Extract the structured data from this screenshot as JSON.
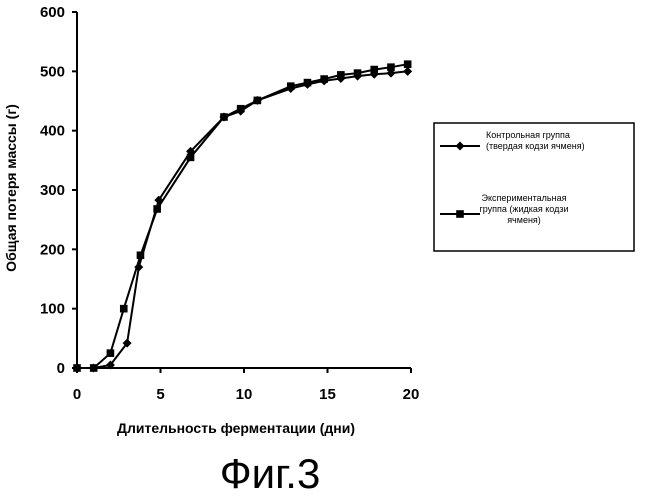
{
  "chart_data": {
    "type": "line",
    "title": "",
    "xlabel": "Длительность ферментации (дни)",
    "ylabel": "Общая потеря массы (г)",
    "xlim": [
      0,
      20
    ],
    "ylim": [
      0,
      600
    ],
    "xticks": [
      0,
      5,
      10,
      15,
      20
    ],
    "yticks": [
      0,
      100,
      200,
      300,
      400,
      500,
      600
    ],
    "grid": false,
    "legend_position": "right",
    "series": [
      {
        "name_lines": [
          "Контрольная группа",
          "(твердая кодзи ячменя)"
        ],
        "marker": "diamond",
        "color": "#000000",
        "x": [
          0,
          1,
          2,
          3,
          3.7,
          4.9,
          6.8,
          8.8,
          9.8,
          10.8,
          12.8,
          13.8,
          14.8,
          15.8,
          16.8,
          17.8,
          18.8,
          19.8
        ],
        "y": [
          0,
          0,
          5,
          42,
          170,
          283,
          365,
          423,
          433,
          451,
          471,
          478,
          484,
          488,
          492,
          495,
          497,
          500
        ]
      },
      {
        "name_lines": [
          "Экспериментальная",
          "группа (жидкая кодзи",
          "ячменя)"
        ],
        "marker": "square",
        "color": "#000000",
        "x": [
          0,
          1,
          2,
          2.8,
          3.8,
          4.8,
          6.8,
          8.8,
          9.8,
          10.8,
          12.8,
          13.8,
          14.8,
          15.8,
          16.8,
          17.8,
          18.8,
          19.8
        ],
        "y": [
          0,
          0,
          25,
          100,
          190,
          268,
          355,
          423,
          437,
          451,
          475,
          481,
          487,
          494,
          497,
          503,
          507,
          512
        ]
      }
    ]
  },
  "caption": "Фиг.3"
}
